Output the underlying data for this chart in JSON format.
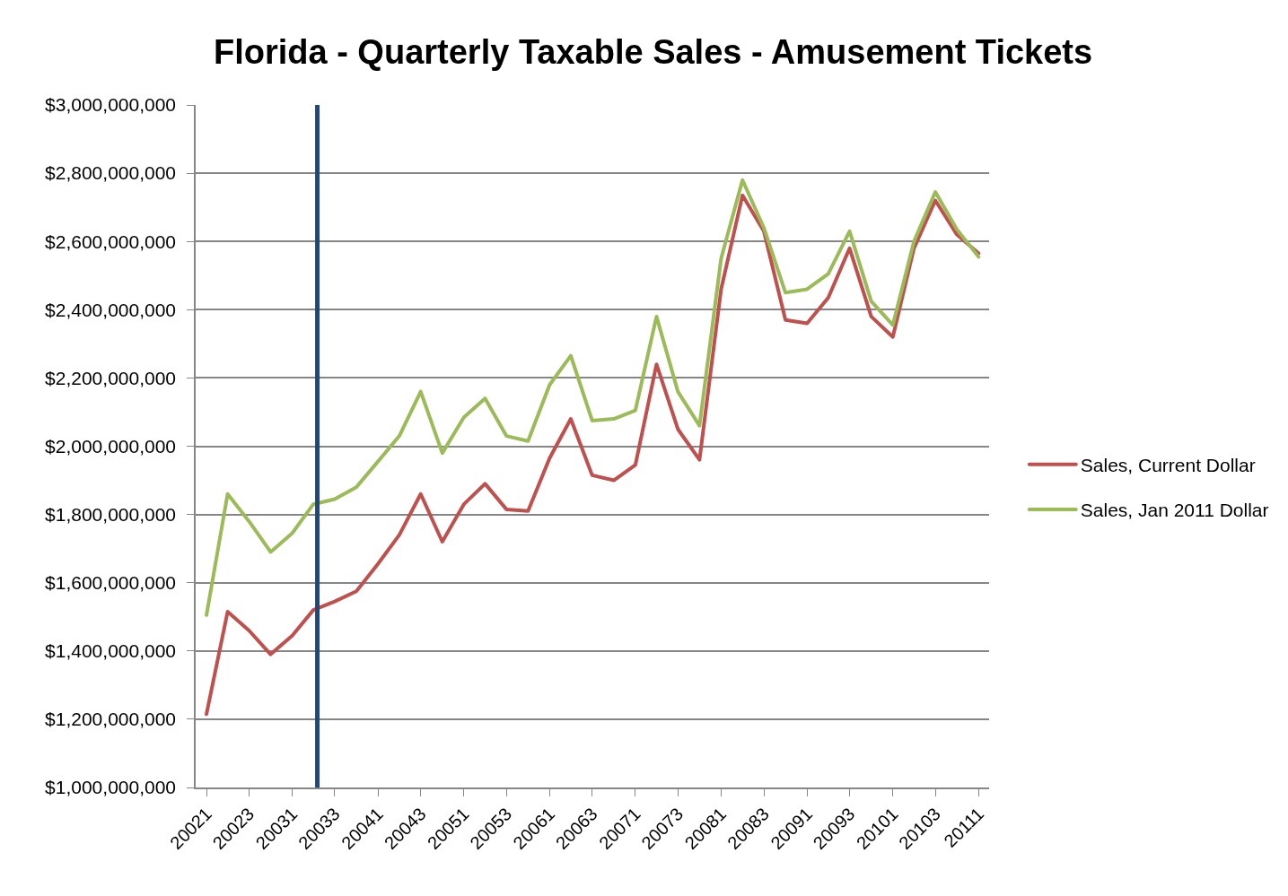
{
  "chart_data": {
    "type": "line",
    "title": "Florida - Quarterly Taxable Sales - Amusement Tickets",
    "x": [
      "2002-01",
      "2002-04",
      "2002-07",
      "2002-10",
      "2003-01",
      "2003-04",
      "2003-07",
      "2003-10",
      "2004-01",
      "2004-04",
      "2004-07",
      "2004-10",
      "2005-01",
      "2005-04",
      "2005-07",
      "2005-10",
      "2006-01",
      "2006-04",
      "2006-07",
      "2006-10",
      "2007-01",
      "2007-04",
      "2007-07",
      "2007-10",
      "2008-01",
      "2008-04",
      "2008-07",
      "2008-10",
      "2009-01",
      "2009-04",
      "2009-07",
      "2009-10",
      "2010-01",
      "2010-04",
      "2010-07",
      "2010-10",
      "2011-01"
    ],
    "series": [
      {
        "name": "Sales, Current Dollar",
        "color": "#c0504d",
        "values": [
          1215000000,
          1515000000,
          1460000000,
          1390000000,
          1445000000,
          1520000000,
          1545000000,
          1575000000,
          1655000000,
          1740000000,
          1860000000,
          1720000000,
          1830000000,
          1890000000,
          1815000000,
          1810000000,
          1965000000,
          2080000000,
          1915000000,
          1900000000,
          1945000000,
          2240000000,
          2050000000,
          1960000000,
          2460000000,
          2735000000,
          2630000000,
          2370000000,
          2360000000,
          2435000000,
          2580000000,
          2380000000,
          2320000000,
          2580000000,
          2720000000,
          2620000000,
          2565000000
        ]
      },
      {
        "name": "Sales, Jan 2011 Dollar",
        "color": "#9bbb59",
        "values": [
          1505000000,
          1860000000,
          1780000000,
          1690000000,
          1745000000,
          1830000000,
          1845000000,
          1880000000,
          1955000000,
          2030000000,
          2160000000,
          1980000000,
          2085000000,
          2140000000,
          2030000000,
          2015000000,
          2180000000,
          2265000000,
          2075000000,
          2080000000,
          2105000000,
          2380000000,
          2160000000,
          2060000000,
          2550000000,
          2780000000,
          2640000000,
          2450000000,
          2460000000,
          2505000000,
          2630000000,
          2425000000,
          2355000000,
          2600000000,
          2745000000,
          2635000000,
          2555000000
        ]
      }
    ],
    "xlim": [
      "2001-11-16",
      "2011-02-15"
    ],
    "xticks": [
      {
        "value": "2002-01",
        "label": "20021"
      },
      {
        "value": "2002-07",
        "label": "20023"
      },
      {
        "value": "2003-01",
        "label": "20031"
      },
      {
        "value": "2003-07",
        "label": "20033"
      },
      {
        "value": "2004-01",
        "label": "20041"
      },
      {
        "value": "2004-07",
        "label": "20043"
      },
      {
        "value": "2005-01",
        "label": "20051"
      },
      {
        "value": "2005-07",
        "label": "20053"
      },
      {
        "value": "2006-01",
        "label": "20061"
      },
      {
        "value": "2006-07",
        "label": "20063"
      },
      {
        "value": "2007-01",
        "label": "20071"
      },
      {
        "value": "2007-07",
        "label": "20073"
      },
      {
        "value": "2008-01",
        "label": "20081"
      },
      {
        "value": "2008-07",
        "label": "20083"
      },
      {
        "value": "2009-01",
        "label": "20091"
      },
      {
        "value": "2009-07",
        "label": "20093"
      },
      {
        "value": "2010-01",
        "label": "20101"
      },
      {
        "value": "2010-07",
        "label": "20103"
      },
      {
        "value": "2011-01",
        "label": "20111"
      }
    ],
    "ylim": [
      1000000000,
      3000000000
    ],
    "yticks": [
      {
        "value": 1000000000,
        "label": "$1,000,000,000"
      },
      {
        "value": 1200000000,
        "label": "$1,200,000,000"
      },
      {
        "value": 1400000000,
        "label": "$1,400,000,000"
      },
      {
        "value": 1600000000,
        "label": "$1,600,000,000"
      },
      {
        "value": 1800000000,
        "label": "$1,800,000,000"
      },
      {
        "value": 2000000000,
        "label": "$2,000,000,000"
      },
      {
        "value": 2200000000,
        "label": "$2,200,000,000"
      },
      {
        "value": 2400000000,
        "label": "$2,400,000,000"
      },
      {
        "value": 2600000000,
        "label": "$2,600,000,000"
      },
      {
        "value": 2800000000,
        "label": "$2,800,000,000"
      },
      {
        "value": 3000000000,
        "label": "$3,000,000,000"
      }
    ],
    "ref_lines": [
      {
        "axis": "x",
        "value": "2003-04-18",
        "color": "#1f497d"
      }
    ],
    "grid": "y",
    "legend": "right",
    "marker": "none",
    "line_style": "solid"
  }
}
